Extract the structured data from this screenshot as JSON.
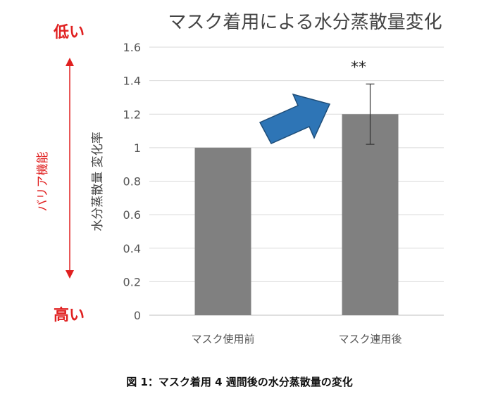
{
  "chart_data": {
    "type": "bar",
    "title": "マスク着用による水分蒸散量変化",
    "ylabel": "水分蒸散量 変化率",
    "xlabel": "",
    "categories": [
      "マスク使用前",
      "マスク連用後"
    ],
    "values": [
      1.0,
      1.2
    ],
    "error_bars": [
      null,
      0.18
    ],
    "ylim": [
      0,
      1.6
    ],
    "yticks": [
      "0",
      "0.2",
      "0.4",
      "0.6",
      "0.8",
      "1",
      "1.2",
      "1.4",
      "1.6"
    ],
    "grid": true,
    "annotations": {
      "significance": "**",
      "barrier_label": "バリア機能",
      "low_label": "低い",
      "high_label": "高い"
    },
    "colors": {
      "bar": "#808080",
      "arrow": "#2e75b6",
      "accent": "#e02020"
    }
  },
  "caption": "図 1：マスク着用 4 週間後の水分蒸散量の変化"
}
